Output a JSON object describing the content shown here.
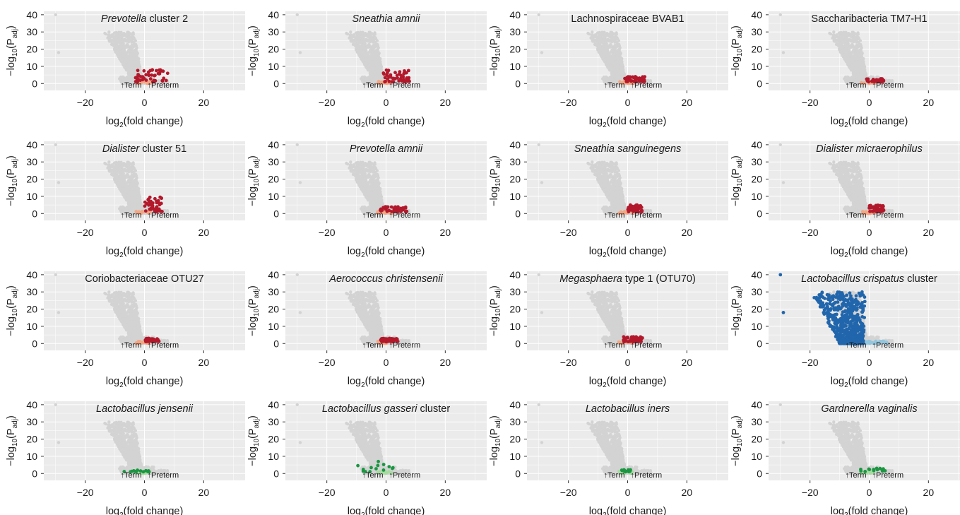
{
  "shared": {
    "xlabel_prefix": "log",
    "xlabel_sub": "2",
    "xlabel_suffix": "(fold change)",
    "ylabel_prefix": "−log",
    "ylabel_sub1": "10",
    "ylabel_mid": "(P",
    "ylabel_sub2": "adj",
    "ylabel_suffix": ")",
    "annotation_term": "↑Term",
    "annotation_preterm": "↑Preterm",
    "x_ticks": [
      -20,
      0,
      20
    ],
    "x_tick_labels": [
      "−20",
      "0",
      "20"
    ],
    "y_ticks": [
      0,
      10,
      20,
      30,
      40
    ],
    "y_tick_labels": [
      "0",
      "10",
      "20",
      "30",
      "40"
    ],
    "xlim": [
      -34,
      34
    ],
    "ylim": [
      -4,
      42
    ],
    "colors": {
      "panel_background": "#ebebeb",
      "grid": "#ffffff",
      "background_points": "#d3d3d3",
      "preterm_sig": "#b2182b",
      "preterm_ns": "#f4a582",
      "term_sig": "#2166ac",
      "term_ns": "#92c5de",
      "green_sig": "#1a9641",
      "green_ns": "#a6dba0"
    }
  },
  "chart_data": [
    {
      "type": "scatter",
      "title": [
        {
          "text": "Prevotella",
          "italic": true
        },
        {
          "text": " cluster 2",
          "italic": false
        }
      ],
      "highlight": {
        "scheme": "preterm",
        "x_range": [
          -3,
          8
        ],
        "y_max": 8
      }
    },
    {
      "type": "scatter",
      "title": [
        {
          "text": "Sneathia amnii",
          "italic": true
        }
      ],
      "highlight": {
        "scheme": "preterm",
        "x_range": [
          -1,
          8
        ],
        "y_max": 8
      }
    },
    {
      "type": "scatter",
      "title": [
        {
          "text": "Lachnospiraceae BVAB1",
          "italic": false
        }
      ],
      "highlight": {
        "scheme": "preterm",
        "x_range": [
          -1,
          6
        ],
        "y_max": 4
      }
    },
    {
      "type": "scatter",
      "title": [
        {
          "text": "Saccharibacteria TM7-H1",
          "italic": false
        }
      ],
      "highlight": {
        "scheme": "preterm",
        "x_range": [
          -1,
          5
        ],
        "y_max": 3
      }
    },
    {
      "type": "scatter",
      "title": [
        {
          "text": "Dialister",
          "italic": true
        },
        {
          "text": " cluster 51",
          "italic": false
        }
      ],
      "highlight": {
        "scheme": "preterm",
        "x_range": [
          0,
          6
        ],
        "y_max": 10
      }
    },
    {
      "type": "scatter",
      "title": [
        {
          "text": "Prevotella amnii",
          "italic": true
        }
      ],
      "highlight": {
        "scheme": "preterm",
        "x_range": [
          -2,
          7
        ],
        "y_max": 4
      }
    },
    {
      "type": "scatter",
      "title": [
        {
          "text": "Sneathia sanguinegens",
          "italic": true
        }
      ],
      "highlight": {
        "scheme": "preterm",
        "x_range": [
          0,
          5
        ],
        "y_max": 5
      }
    },
    {
      "type": "scatter",
      "title": [
        {
          "text": "Dialister micraerophilus",
          "italic": true
        }
      ],
      "highlight": {
        "scheme": "preterm",
        "x_range": [
          0,
          5
        ],
        "y_max": 5
      }
    },
    {
      "type": "scatter",
      "title": [
        {
          "text": "Coriobacteriaceae OTU27",
          "italic": false
        }
      ],
      "highlight": {
        "scheme": "preterm",
        "x_range": [
          0,
          5
        ],
        "y_max": 3
      }
    },
    {
      "type": "scatter",
      "title": [
        {
          "text": "Aerococcus christensenii",
          "italic": true
        }
      ],
      "highlight": {
        "scheme": "preterm",
        "x_range": [
          -2,
          4
        ],
        "y_max": 3
      }
    },
    {
      "type": "scatter",
      "title": [
        {
          "text": "Megasphaera",
          "italic": true
        },
        {
          "text": " type 1 (OTU70)",
          "italic": false
        }
      ],
      "highlight": {
        "scheme": "preterm",
        "x_range": [
          -2,
          5
        ],
        "y_max": 4
      }
    },
    {
      "type": "scatter",
      "title": [
        {
          "text": "Lactobacillus crispatus",
          "italic": true
        },
        {
          "text": " cluster",
          "italic": false
        }
      ],
      "highlight": {
        "scheme": "term",
        "x_range": [
          -30,
          7
        ],
        "y_max": 40
      }
    },
    {
      "type": "scatter",
      "title": [
        {
          "text": "Lactobacillus jensenii",
          "italic": true
        }
      ],
      "highlight": {
        "scheme": "green",
        "x_range": [
          -7,
          3
        ],
        "y_max": 2
      }
    },
    {
      "type": "scatter",
      "title": [
        {
          "text": "Lactobacillus gasseri",
          "italic": true
        },
        {
          "text": " cluster",
          "italic": false
        }
      ],
      "highlight": {
        "scheme": "green",
        "x_range": [
          -10,
          4
        ],
        "y_max": 7
      }
    },
    {
      "type": "scatter",
      "title": [
        {
          "text": "Lactobacillus iners",
          "italic": true
        }
      ],
      "highlight": {
        "scheme": "green",
        "x_range": [
          -2,
          1
        ],
        "y_max": 3
      }
    },
    {
      "type": "scatter",
      "title": [
        {
          "text": "Gardnerella vaginalis",
          "italic": true
        }
      ],
      "highlight": {
        "scheme": "green",
        "x_range": [
          -3,
          6
        ],
        "y_max": 3
      }
    }
  ]
}
